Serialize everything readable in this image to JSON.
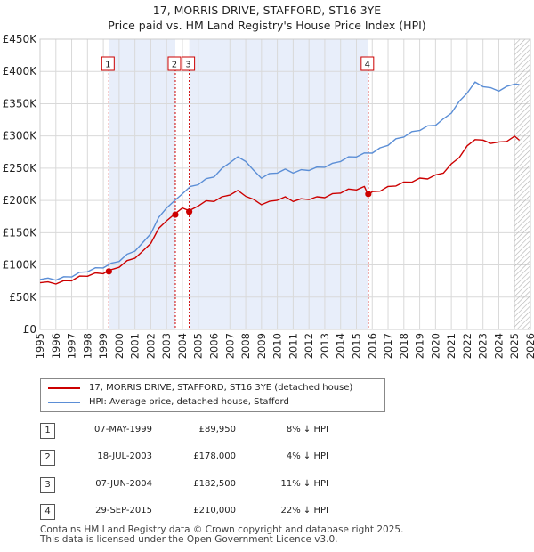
{
  "title_line1": "17, MORRIS DRIVE, STAFFORD, ST16 3YE",
  "title_line2": "Price paid vs. HM Land Registry's House Price Index (HPI)",
  "colors": {
    "property": "#cc0000",
    "hpi": "#5b8ed6",
    "shade": "#e8eefa",
    "grid": "#d9d9d9",
    "marker_line": "#cc0000"
  },
  "legend": {
    "property_label": "17, MORRIS DRIVE, STAFFORD, ST16 3YE (detached house)",
    "hpi_label": "HPI: Average price, detached house, Stafford"
  },
  "transactions": [
    {
      "num": "1",
      "date": "07-MAY-1999",
      "price": "£89,950",
      "hpi": "8% ↓ HPI"
    },
    {
      "num": "2",
      "date": "18-JUL-2003",
      "price": "£178,000",
      "hpi": "4% ↓ HPI"
    },
    {
      "num": "3",
      "date": "07-JUN-2004",
      "price": "£182,500",
      "hpi": "11% ↓ HPI"
    },
    {
      "num": "4",
      "date": "29-SEP-2015",
      "price": "£210,000",
      "hpi": "22% ↓ HPI"
    }
  ],
  "footer_line1": "Contains HM Land Registry data © Crown copyright and database right 2025.",
  "footer_line2": "This data is licensed under the Open Government Licence v3.0.",
  "chart_data": {
    "type": "line",
    "title": "17, MORRIS DRIVE, STAFFORD, ST16 3YE — Price paid vs. HM Land Registry's House Price Index (HPI)",
    "xlabel": "",
    "ylabel": "",
    "xlim": [
      1995,
      2026
    ],
    "ylim": [
      0,
      450000
    ],
    "y_ticks": [
      0,
      50000,
      100000,
      150000,
      200000,
      250000,
      300000,
      350000,
      400000,
      450000
    ],
    "y_tick_labels": [
      "£0",
      "£50K",
      "£100K",
      "£150K",
      "£200K",
      "£250K",
      "£300K",
      "£350K",
      "£400K",
      "£450K"
    ],
    "x_ticks": [
      1995,
      1996,
      1997,
      1998,
      1999,
      2000,
      2001,
      2002,
      2003,
      2004,
      2005,
      2006,
      2007,
      2008,
      2009,
      2010,
      2011,
      2012,
      2013,
      2014,
      2015,
      2016,
      2017,
      2018,
      2019,
      2020,
      2021,
      2022,
      2023,
      2024,
      2025,
      2026
    ],
    "shaded_ranges": [
      [
        1999.35,
        2003.55
      ],
      [
        2004.43,
        2015.75
      ]
    ],
    "hatched_from": 2025.0,
    "series": [
      {
        "name": "17, MORRIS DRIVE, STAFFORD, ST16 3YE (detached house)",
        "x": [
          1995.0,
          1995.5,
          1996.0,
          1996.5,
          1997.0,
          1997.5,
          1998.0,
          1998.5,
          1999.0,
          1999.35,
          2000.0,
          2000.5,
          2001.0,
          2001.5,
          2002.0,
          2002.5,
          2003.0,
          2003.55,
          2004.0,
          2004.43,
          2005.0,
          2005.5,
          2006.0,
          2006.5,
          2007.0,
          2007.5,
          2008.0,
          2008.5,
          2009.0,
          2009.5,
          2010.0,
          2010.5,
          2011.0,
          2011.5,
          2012.0,
          2012.5,
          2013.0,
          2013.5,
          2014.0,
          2014.5,
          2015.0,
          2015.5,
          2015.75,
          2016.0,
          2016.5,
          2017.0,
          2017.5,
          2018.0,
          2018.5,
          2019.0,
          2019.5,
          2020.0,
          2020.5,
          2021.0,
          2021.5,
          2022.0,
          2022.5,
          2023.0,
          2023.5,
          2024.0,
          2024.5,
          2025.0,
          2025.3
        ],
        "values": [
          74000,
          72000,
          72000,
          74000,
          77000,
          81000,
          84000,
          86000,
          88000,
          89950,
          98000,
          105000,
          112000,
          120000,
          135000,
          155000,
          170000,
          178000,
          190000,
          182500,
          193000,
          198000,
          200000,
          204000,
          210000,
          214000,
          208000,
          200000,
          195000,
          197000,
          202000,
          204000,
          200000,
          201000,
          203000,
          204000,
          206000,
          209000,
          213000,
          216000,
          218000,
          220000,
          210000,
          212000,
          216000,
          220000,
          224000,
          227000,
          230000,
          233000,
          235000,
          238000,
          244000,
          255000,
          268000,
          283000,
          296000,
          292000,
          290000,
          289000,
          293000,
          298000,
          295000
        ]
      },
      {
        "name": "HPI: Average price, detached house, Stafford",
        "x": [
          1995.0,
          1995.5,
          1996.0,
          1996.5,
          1997.0,
          1997.5,
          1998.0,
          1998.5,
          1999.0,
          1999.5,
          2000.0,
          2000.5,
          2001.0,
          2001.5,
          2002.0,
          2002.5,
          2003.0,
          2003.5,
          2004.0,
          2004.5,
          2005.0,
          2005.5,
          2006.0,
          2006.5,
          2007.0,
          2007.5,
          2008.0,
          2008.5,
          2009.0,
          2009.5,
          2010.0,
          2010.5,
          2011.0,
          2011.5,
          2012.0,
          2012.5,
          2013.0,
          2013.5,
          2014.0,
          2014.5,
          2015.0,
          2015.5,
          2016.0,
          2016.5,
          2017.0,
          2017.5,
          2018.0,
          2018.5,
          2019.0,
          2019.5,
          2020.0,
          2020.5,
          2021.0,
          2021.5,
          2022.0,
          2022.5,
          2023.0,
          2023.5,
          2024.0,
          2024.5,
          2025.0,
          2025.3
        ],
        "values": [
          79000,
          78000,
          78000,
          80000,
          83000,
          87000,
          91000,
          94000,
          97000,
          101000,
          107000,
          115000,
          123000,
          133000,
          150000,
          172000,
          190000,
          198000,
          212000,
          220000,
          226000,
          232000,
          238000,
          248000,
          260000,
          266000,
          262000,
          245000,
          236000,
          240000,
          244000,
          247000,
          244000,
          246000,
          248000,
          250000,
          253000,
          256000,
          262000,
          266000,
          269000,
          272000,
          275000,
          280000,
          287000,
          294000,
          300000,
          305000,
          310000,
          314000,
          318000,
          325000,
          337000,
          352000,
          368000,
          382000,
          378000,
          373000,
          371000,
          375000,
          382000,
          378000
        ]
      }
    ],
    "markers": [
      {
        "label": "1",
        "x": 1999.35,
        "y": 89950
      },
      {
        "label": "2",
        "x": 2003.55,
        "y": 178000
      },
      {
        "label": "3",
        "x": 2004.43,
        "y": 182500
      },
      {
        "label": "4",
        "x": 2015.75,
        "y": 210000
      }
    ]
  }
}
